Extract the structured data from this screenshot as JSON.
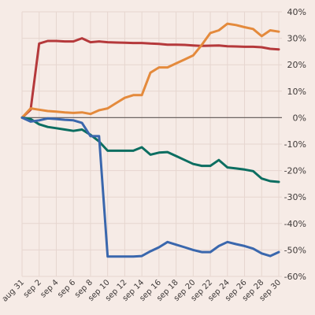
{
  "chart_data": {
    "type": "line",
    "title": "",
    "xlabel": "",
    "ylabel": "",
    "x": [
      "aug 31",
      "sep 1",
      "sep 2",
      "sep 3",
      "sep 4",
      "sep 5",
      "sep 6",
      "sep 7",
      "sep 8",
      "sep 9",
      "sep 10",
      "sep 11",
      "sep 12",
      "sep 13",
      "sep 14",
      "sep 15",
      "sep 16",
      "sep 17",
      "sep 18",
      "sep 19",
      "sep 20",
      "sep 21",
      "sep 22",
      "sep 23",
      "sep 24",
      "sep 25",
      "sep 26",
      "sep 27",
      "sep 28",
      "sep 29",
      "sep 30"
    ],
    "x_tick_labels": [
      "aug 31",
      "sep 2",
      "sep 4",
      "sep 6",
      "sep 8",
      "sep 10",
      "sep 12",
      "sep 14",
      "sep 16",
      "sep 18",
      "sep 20",
      "sep 22",
      "sep 24",
      "sep 26",
      "sep 28",
      "sep 30"
    ],
    "y_tick_labels": [
      "40%",
      "30%",
      "20%",
      "10%",
      "0%",
      "-10%",
      "-20%",
      "-30%",
      "-40%",
      "-50%",
      "-60%"
    ],
    "ylim": [
      -60,
      40
    ],
    "y_ticks": [
      40,
      30,
      20,
      10,
      0,
      -10,
      -20,
      -30,
      -40,
      -50,
      -60
    ],
    "grid": true,
    "y_axis_side": "right",
    "series": [
      {
        "color": "#b5393b",
        "values": [
          0,
          3,
          28,
          29,
          29,
          28.8,
          28.8,
          30,
          28.5,
          28.8,
          28.5,
          28.4,
          28.3,
          28.2,
          28.2,
          28,
          27.9,
          27.6,
          27.6,
          27.5,
          27.3,
          27.1,
          27.2,
          27.3,
          27,
          26.9,
          26.8,
          26.8,
          26.6,
          26,
          25.8
        ]
      },
      {
        "color": "#e48a3c",
        "values": [
          0,
          3.5,
          3,
          2.5,
          2.3,
          2,
          1.8,
          2,
          1.4,
          2.8,
          3.5,
          5.5,
          7.5,
          8.5,
          8.5,
          17,
          19,
          19,
          20.5,
          22,
          23.5,
          27.5,
          32,
          33,
          35.5,
          35,
          34.2,
          33.5,
          30.8,
          33,
          32.5
        ]
      },
      {
        "color": "#0c6e61",
        "values": [
          0,
          -0.5,
          -2.5,
          -3.5,
          -4,
          -4.5,
          -5,
          -4.5,
          -6.5,
          -9,
          -12.5,
          -12.5,
          -12.5,
          -12.5,
          -11.2,
          -14,
          -13.2,
          -13,
          -14.5,
          -16,
          -17.5,
          -18.2,
          -18.2,
          -16,
          -18.8,
          -19.2,
          -19.6,
          -20.2,
          -23,
          -24,
          -24.3
        ]
      },
      {
        "color": "#3a67ad",
        "values": [
          0,
          -1.5,
          -1,
          -0.3,
          -0.5,
          -0.8,
          -1,
          -2,
          -7,
          -7,
          -52.5,
          -52.5,
          -52.5,
          -52.5,
          -52.3,
          -50.5,
          -49,
          -47,
          -48,
          -49,
          -50,
          -50.8,
          -50.8,
          -48.5,
          -47,
          -47.8,
          -48.5,
          -49.5,
          -51.3,
          -52.3,
          -50.8
        ]
      }
    ]
  }
}
